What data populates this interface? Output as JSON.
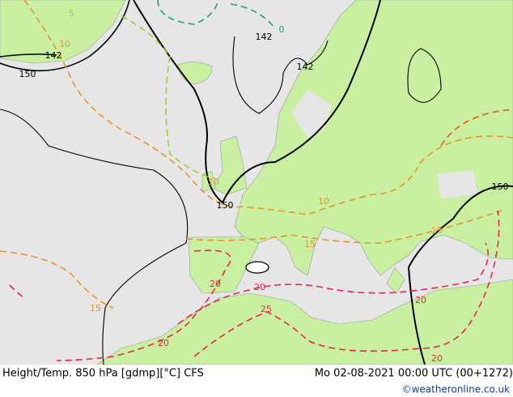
{
  "map": {
    "labels": [
      "5",
      "10",
      "142",
      "150",
      "0",
      "142",
      "142",
      "10",
      "150",
      "150",
      "10",
      "15",
      "15",
      "15",
      "20",
      "20",
      "25",
      "20",
      "20",
      "20"
    ]
  },
  "footer": {
    "title": "Height/Temp. 850 hPa [gdmp][°C] CFS",
    "time": "Mo 02-08-2021 00:00 UTC (00+1272)",
    "credit": "©weatheronline.co.uk"
  }
}
